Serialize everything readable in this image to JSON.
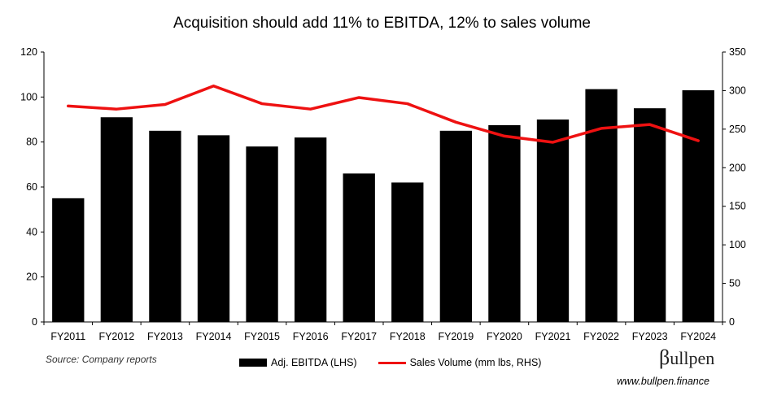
{
  "chart_data": {
    "type": "bar",
    "title": "Acquisition should add 11% to EBITDA, 12% to sales volume",
    "categories": [
      "FY2011",
      "FY2012",
      "FY2013",
      "FY2014",
      "FY2015",
      "FY2016",
      "FY2017",
      "FY2018",
      "FY2019",
      "FY2020",
      "FY2021",
      "FY2022",
      "FY2023",
      "FY2024"
    ],
    "series": [
      {
        "name": "Adj. EBITDA (LHS)",
        "type": "bar",
        "axis": "left",
        "color": "#000000",
        "values": [
          55,
          91,
          85,
          83,
          78,
          82,
          66,
          62,
          85,
          87.5,
          90,
          103.5,
          95,
          103
        ]
      },
      {
        "name": "Sales Volume (mm lbs, RHS)",
        "type": "line",
        "axis": "right",
        "color": "#ee1111",
        "values": [
          280,
          276,
          282,
          306,
          283,
          276,
          291,
          283,
          259,
          241,
          233,
          251,
          256,
          235
        ]
      }
    ],
    "ylim_left": [
      0,
      120
    ],
    "yticks_left": [
      "0",
      "20",
      "40",
      "60",
      "80",
      "100",
      "120"
    ],
    "ylim_right": [
      0,
      350
    ],
    "yticks_right": [
      "0",
      "50",
      "100",
      "150",
      "200",
      "250",
      "300",
      "350"
    ],
    "grid": false,
    "legend_position": "bottom"
  },
  "footer": {
    "source": "Source: Company reports",
    "brand_prefix": "β",
    "brand_rest": "ullpen",
    "url": "www.bullpen.finance"
  }
}
